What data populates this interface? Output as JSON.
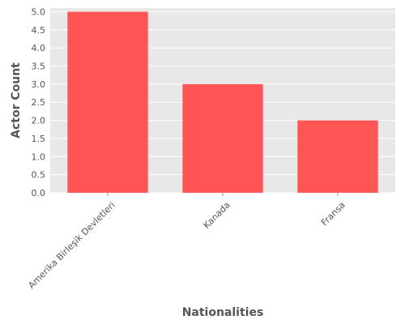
{
  "chart_data": {
    "type": "bar",
    "title": "",
    "xlabel": "Nationalities",
    "ylabel": "Actor Count",
    "categories": [
      "Amerika Birleşik Devletleri",
      "Kanada",
      "Fransa"
    ],
    "values": [
      5,
      3,
      2
    ],
    "ylim": [
      0,
      5.1
    ],
    "yticks": [
      "0.0",
      "0.5",
      "1.0",
      "1.5",
      "2.0",
      "2.5",
      "3.0",
      "3.5",
      "4.0",
      "4.5",
      "5.0"
    ],
    "grid": true,
    "colors": {
      "bar": "#ff5555",
      "background": "#e8e8e8",
      "grid": "#ffffff"
    }
  }
}
